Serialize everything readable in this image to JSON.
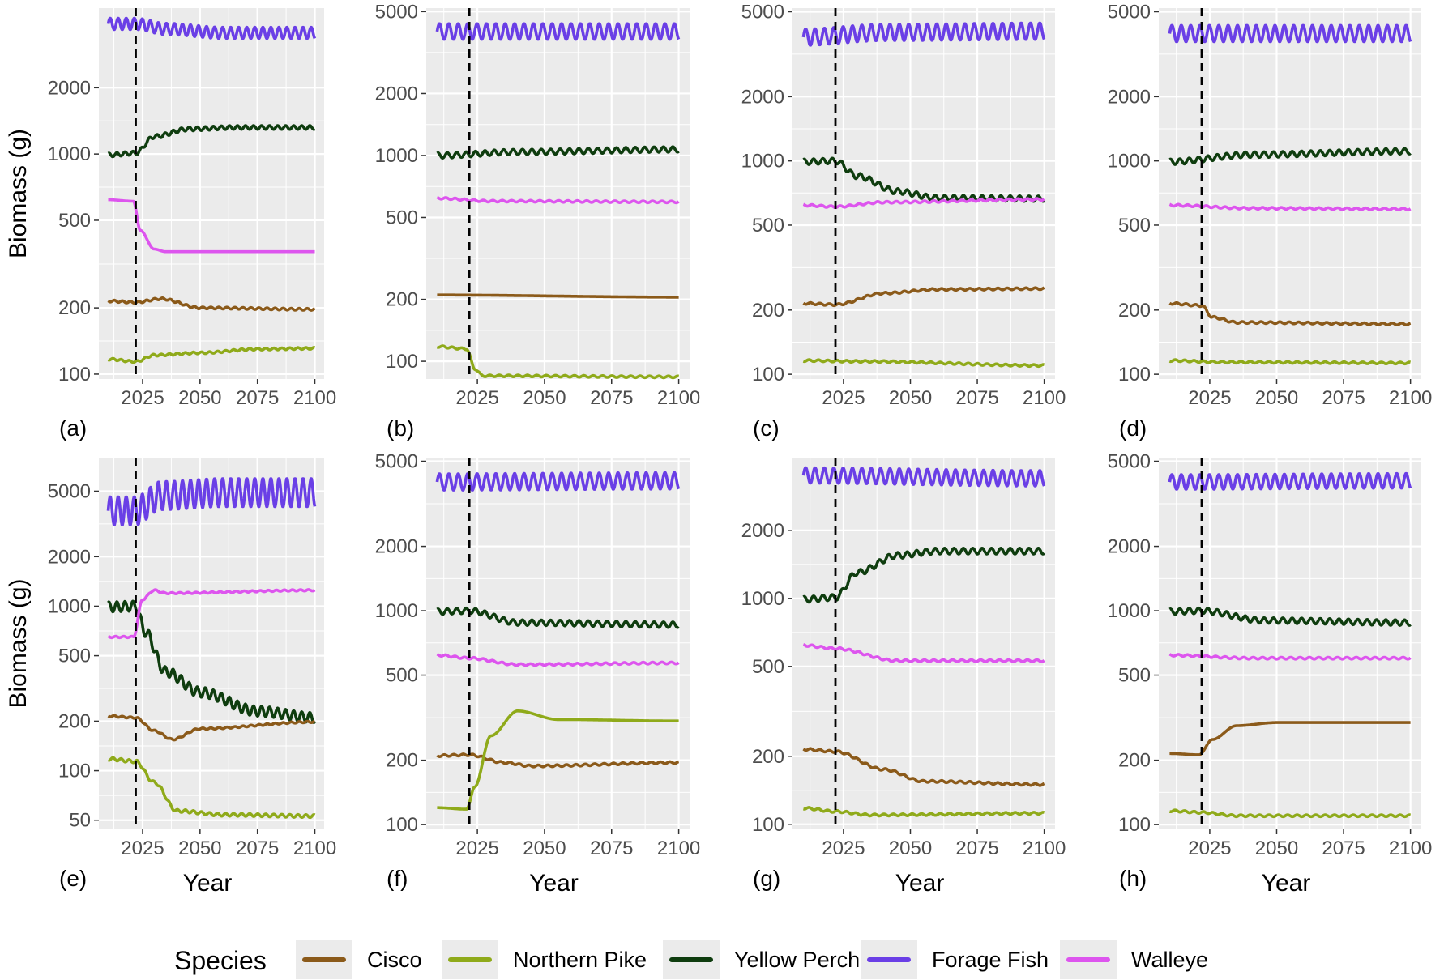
{
  "chart_data": {
    "type": "line",
    "y_scale": "log",
    "grid": true,
    "xlabel": "Year",
    "ylabel": "Biomass (g)",
    "x_ticks": [
      2025,
      2050,
      2075,
      2100
    ],
    "intervention_year": 2022,
    "x_range": [
      2010,
      2100
    ],
    "legend": {
      "title": "Species",
      "position": "bottom",
      "entries": [
        {
          "name": "Cisco",
          "color": "#8B5A1A"
        },
        {
          "name": "Northern Pike",
          "color": "#8FAA1A"
        },
        {
          "name": "Yellow Perch",
          "color": "#0F3D0F"
        },
        {
          "name": "Forage Fish",
          "color": "#6A3FE6"
        },
        {
          "name": "Walleye",
          "color": "#DD55EE"
        }
      ]
    },
    "panels": [
      {
        "label": "(a)",
        "ylim": [
          95,
          4600
        ],
        "y_ticks": [
          100,
          200,
          500,
          1000,
          2000
        ],
        "series": {
          "Forage Fish": {
            "x": [
              2010,
              2022,
              2035,
              2060,
              2100
            ],
            "y": [
              3900,
              3900,
              3700,
              3550,
              3550
            ],
            "amp": 0.06
          },
          "Yellow Perch": {
            "x": [
              2010,
              2022,
              2030,
              2045,
              2065,
              2100
            ],
            "y": [
              990,
              1010,
              1200,
              1300,
              1320,
              1320
            ],
            "amp": 0.02
          },
          "Walleye": {
            "x": [
              2010,
              2021,
              2024,
              2030,
              2035,
              2100
            ],
            "y": [
              620,
              610,
              450,
              370,
              360,
              360
            ],
            "amp": 0.0
          },
          "Cisco": {
            "x": [
              2010,
              2022,
              2033,
              2050,
              2100
            ],
            "y": [
              215,
              212,
              220,
              200,
              197
            ],
            "amp": 0.01
          },
          "Northern Pike": {
            "x": [
              2010,
              2022,
              2030,
              2050,
              2075,
              2100
            ],
            "y": [
              117,
              114,
              122,
              125,
              130,
              131
            ],
            "amp": 0.01
          }
        }
      },
      {
        "label": "(b)",
        "ylim": [
          82,
          5200
        ],
        "y_ticks": [
          100,
          200,
          500,
          1000,
          2000,
          5000
        ],
        "series": {
          "Forage Fish": {
            "x": [
              2010,
              2100
            ],
            "y": [
              4000,
              4000
            ],
            "amp": 0.09
          },
          "Yellow Perch": {
            "x": [
              2010,
              2040,
              2100
            ],
            "y": [
              1000,
              1040,
              1070
            ],
            "amp": 0.03
          },
          "Walleye": {
            "x": [
              2010,
              2030,
              2100
            ],
            "y": [
              620,
              600,
              595
            ],
            "amp": 0.01
          },
          "Cisco": {
            "x": [
              2010,
              2100
            ],
            "y": [
              210,
              205
            ],
            "amp": 0.0
          },
          "Northern Pike": {
            "x": [
              2010,
              2021,
              2024,
              2027,
              2100
            ],
            "y": [
              118,
              115,
              92,
              85,
              84
            ],
            "amp": 0.01
          }
        }
      },
      {
        "label": "(c)",
        "ylim": [
          95,
          5200
        ],
        "y_ticks": [
          100,
          200,
          500,
          1000,
          2000,
          5000
        ],
        "series": {
          "Forage Fish": {
            "x": [
              2010,
              2040,
              2100
            ],
            "y": [
              3800,
              4000,
              4050
            ],
            "amp": 0.09
          },
          "Yellow Perch": {
            "x": [
              2010,
              2022,
              2030,
              2045,
              2060,
              2100
            ],
            "y": [
              990,
              1000,
              850,
              720,
              670,
              665
            ],
            "amp": 0.03
          },
          "Walleye": {
            "x": [
              2010,
              2022,
              2040,
              2100
            ],
            "y": [
              620,
              610,
              640,
              660
            ],
            "amp": 0.01
          },
          "Cisco": {
            "x": [
              2010,
              2022,
              2040,
              2060,
              2100
            ],
            "y": [
              215,
              212,
              240,
              250,
              252
            ],
            "amp": 0.01
          },
          "Northern Pike": {
            "x": [
              2010,
              2030,
              2100
            ],
            "y": [
              116,
              115,
              110
            ],
            "amp": 0.01
          }
        }
      },
      {
        "label": "(d)",
        "ylim": [
          95,
          5200
        ],
        "y_ticks": [
          100,
          200,
          500,
          1000,
          2000,
          5000
        ],
        "series": {
          "Forage Fish": {
            "x": [
              2010,
              2100
            ],
            "y": [
              3950,
              3950
            ],
            "amp": 0.09
          },
          "Yellow Perch": {
            "x": [
              2010,
              2040,
              2100
            ],
            "y": [
              990,
              1070,
              1110
            ],
            "amp": 0.03
          },
          "Walleye": {
            "x": [
              2010,
              2040,
              2100
            ],
            "y": [
              620,
              600,
              595
            ],
            "amp": 0.01
          },
          "Cisco": {
            "x": [
              2010,
              2022,
              2026,
              2035,
              2100
            ],
            "y": [
              215,
              210,
              185,
              175,
              172
            ],
            "amp": 0.01
          },
          "Northern Pike": {
            "x": [
              2010,
              2030,
              2100
            ],
            "y": [
              116,
              114,
              113
            ],
            "amp": 0.01
          }
        }
      },
      {
        "label": "(e)",
        "ylim": [
          44,
          8000
        ],
        "y_ticks": [
          50,
          100,
          200,
          500,
          1000,
          2000,
          5000
        ],
        "series": {
          "Forage Fish": {
            "x": [
              2010,
              2022,
              2033,
              2060,
              2100
            ],
            "y": [
              3800,
              3800,
              4700,
              4900,
              4900
            ],
            "amp": 0.2
          },
          "Yellow Perch": {
            "x": [
              2010,
              2022,
              2026,
              2035,
              2050,
              2075,
              2100
            ],
            "y": [
              990,
              1000,
              700,
              400,
              300,
              230,
              210
            ],
            "amp": 0.07
          },
          "Walleye": {
            "x": [
              2010,
              2021,
              2025,
              2030,
              2035,
              2100
            ],
            "y": [
              650,
              650,
              1100,
              1250,
              1200,
              1250
            ],
            "amp": 0.01
          },
          "Cisco": {
            "x": [
              2010,
              2022,
              2030,
              2038,
              2050,
              2100
            ],
            "y": [
              215,
              210,
              175,
              155,
              180,
              198
            ],
            "amp": 0.01
          },
          "Northern Pike": {
            "x": [
              2010,
              2022,
              2030,
              2040,
              2060,
              2100
            ],
            "y": [
              118,
              114,
              85,
              57,
              54,
              53
            ],
            "amp": 0.02
          }
        }
      },
      {
        "label": "(f)",
        "ylim": [
          95,
          5200
        ],
        "y_ticks": [
          100,
          200,
          500,
          1000,
          2000,
          5000
        ],
        "series": {
          "Forage Fish": {
            "x": [
              2010,
              2100
            ],
            "y": [
              4000,
              4050
            ],
            "amp": 0.09
          },
          "Yellow Perch": {
            "x": [
              2010,
              2022,
              2040,
              2100
            ],
            "y": [
              990,
              1000,
              880,
              860
            ],
            "amp": 0.03
          },
          "Walleye": {
            "x": [
              2010,
              2022,
              2040,
              2100
            ],
            "y": [
              620,
              600,
              560,
              570
            ],
            "amp": 0.01
          },
          "Cisco": {
            "x": [
              2010,
              2022,
              2035,
              2045,
              2100
            ],
            "y": [
              210,
              212,
              195,
              188,
              195
            ],
            "amp": 0.01
          },
          "Northern Pike": {
            "x": [
              2010,
              2021,
              2024,
              2030,
              2040,
              2055,
              2100
            ],
            "y": [
              120,
              118,
              150,
              260,
              340,
              310,
              305
            ],
            "amp": 0.0
          }
        }
      },
      {
        "label": "(g)",
        "ylim": [
          95,
          4200
        ],
        "y_ticks": [
          100,
          200,
          500,
          1000,
          2000
        ],
        "series": {
          "Forage Fish": {
            "x": [
              2010,
              2100
            ],
            "y": [
              3500,
              3400
            ],
            "amp": 0.08
          },
          "Yellow Perch": {
            "x": [
              2010,
              2022,
              2030,
              2045,
              2060,
              2100
            ],
            "y": [
              990,
              1010,
              1300,
              1550,
              1620,
              1620
            ],
            "amp": 0.03
          },
          "Walleye": {
            "x": [
              2010,
              2022,
              2045,
              2100
            ],
            "y": [
              620,
              600,
              530,
              530
            ],
            "amp": 0.01
          },
          "Cisco": {
            "x": [
              2010,
              2022,
              2040,
              2055,
              2100
            ],
            "y": [
              215,
              210,
              175,
              155,
              150
            ],
            "amp": 0.01
          },
          "Northern Pike": {
            "x": [
              2010,
              2022,
              2035,
              2100
            ],
            "y": [
              118,
              114,
              110,
              112
            ],
            "amp": 0.01
          }
        }
      },
      {
        "label": "(h)",
        "ylim": [
          95,
          5200
        ],
        "y_ticks": [
          100,
          200,
          500,
          1000,
          2000,
          5000
        ],
        "series": {
          "Forage Fish": {
            "x": [
              2010,
              2100
            ],
            "y": [
              4000,
              4050
            ],
            "amp": 0.08
          },
          "Yellow Perch": {
            "x": [
              2010,
              2022,
              2045,
              2100
            ],
            "y": [
              990,
              1000,
              900,
              880
            ],
            "amp": 0.03
          },
          "Walleye": {
            "x": [
              2010,
              2040,
              2100
            ],
            "y": [
              620,
              600,
              600
            ],
            "amp": 0.01
          },
          "Cisco": {
            "x": [
              2010,
              2021,
              2026,
              2035,
              2050,
              2100
            ],
            "y": [
              215,
              212,
              250,
              290,
              300,
              300
            ],
            "amp": 0.0
          },
          "Northern Pike": {
            "x": [
              2010,
              2022,
              2035,
              2100
            ],
            "y": [
              116,
              114,
              110,
              110
            ],
            "amp": 0.01
          }
        }
      }
    ]
  }
}
